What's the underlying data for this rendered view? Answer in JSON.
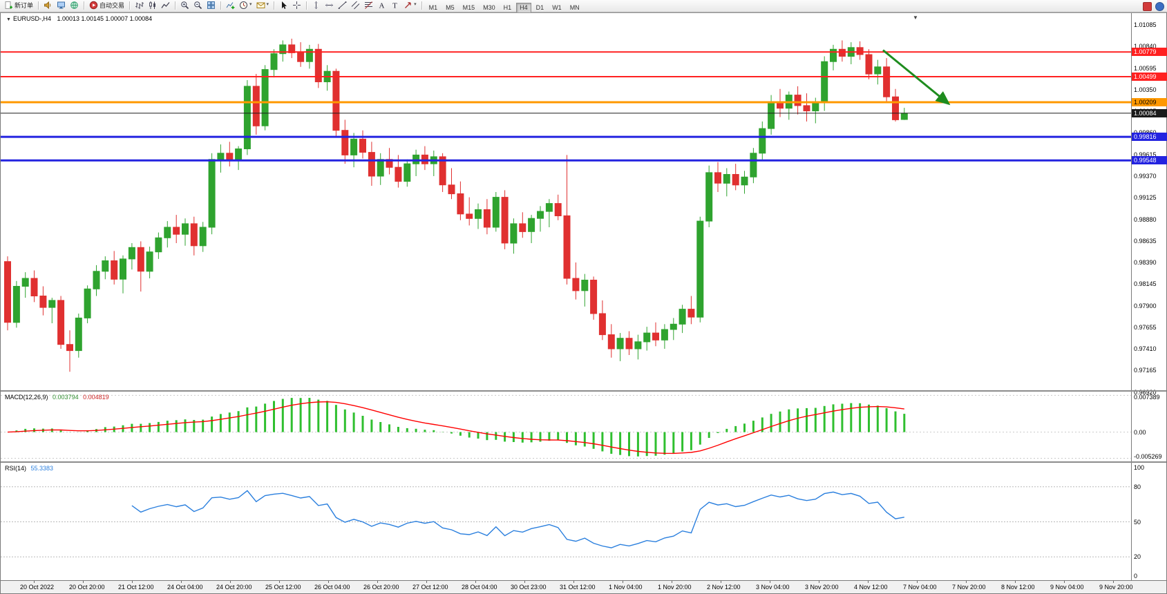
{
  "toolbar": {
    "groups": [
      {
        "items": [
          {
            "name": "new-order-button",
            "glyph": "doc-plus",
            "label": "新订单"
          }
        ]
      },
      {
        "items": [
          {
            "name": "alerts-button",
            "glyph": "speaker"
          },
          {
            "name": "market-watch-button",
            "glyph": "monitor"
          },
          {
            "name": "community-button",
            "glyph": "globe"
          }
        ]
      },
      {
        "items": [
          {
            "name": "autotrading-button",
            "glyph": "play-red",
            "label": "自动交易"
          }
        ]
      },
      {
        "items": [
          {
            "name": "bar-chart-button",
            "glyph": "chart-bars"
          },
          {
            "name": "candlestick-chart-button",
            "glyph": "chart-candles"
          },
          {
            "name": "line-chart-button",
            "glyph": "chart-line"
          }
        ]
      },
      {
        "items": [
          {
            "name": "zoom-in-button",
            "glyph": "zoom-in"
          },
          {
            "name": "zoom-out-button",
            "glyph": "zoom-out"
          },
          {
            "name": "tile-windows-button",
            "glyph": "tile"
          }
        ]
      },
      {
        "items": [
          {
            "name": "indicators-button",
            "glyph": "ind-plus"
          },
          {
            "name": "periods-button",
            "glyph": "clock",
            "caret": true
          },
          {
            "name": "templates-button",
            "glyph": "mail",
            "caret": true
          }
        ]
      },
      {
        "items": [
          {
            "name": "cursor-button",
            "glyph": "cursor"
          },
          {
            "name": "crosshair-button",
            "glyph": "crosshair"
          }
        ]
      },
      {
        "items": [
          {
            "name": "vertical-line-button",
            "glyph": "vline"
          },
          {
            "name": "horizontal-line-button",
            "glyph": "hline"
          },
          {
            "name": "trendline-button",
            "glyph": "trend"
          },
          {
            "name": "channel-button",
            "glyph": "channel"
          },
          {
            "name": "fibonacci-button",
            "glyph": "fibo"
          },
          {
            "name": "text-button",
            "glyph": "text-a"
          },
          {
            "name": "text-label-button",
            "glyph": "label-t"
          },
          {
            "name": "arrows-button",
            "glyph": "arrow-ne",
            "caret": true
          }
        ]
      }
    ],
    "timeframes": [
      "M1",
      "M5",
      "M15",
      "M30",
      "H1",
      "H4",
      "D1",
      "W1",
      "MN"
    ],
    "active_timeframe": "H4",
    "right_icons": [
      {
        "name": "mql-alert-icon",
        "color": "#d23b3b",
        "round": false
      },
      {
        "name": "community-status-icon",
        "color": "#3b6ec2",
        "round": true
      }
    ]
  },
  "chart": {
    "symbol_label": "EURUSD-,H4",
    "ohlc_label": "1.00013 1.00145 1.00007 1.00084",
    "colors": {
      "up": "#2fa32f",
      "down": "#e03030",
      "bg": "#ffffff"
    },
    "price_range": {
      "top": 1.0122,
      "bottom": 0.9694
    },
    "hlines": [
      {
        "price": 1.00779,
        "label": "1.00779",
        "color": "#ff2020",
        "width": 2
      },
      {
        "price": 1.00499,
        "label": "1.00499",
        "color": "#ff2020",
        "width": 2
      },
      {
        "price": 1.00209,
        "label": "1.00209",
        "color": "#ff9800",
        "width": 3,
        "text_color": "#000"
      },
      {
        "price": 1.00084,
        "label": "1.00084",
        "color": "#1a1a1a",
        "width": 1
      },
      {
        "price": 0.99816,
        "label": "0.99816",
        "color": "#2323e0",
        "width": 3
      },
      {
        "price": 0.99548,
        "label": "0.99548",
        "color": "#2323e0",
        "width": 3
      }
    ],
    "arrow": {
      "from_bar": 98.6,
      "from_price": 1.008,
      "to_bar": 106,
      "to_price": 1.0019,
      "color": "#1e8c1e"
    },
    "price_scale_labels": [
      "1.01085",
      "1.00840",
      "1.00595",
      "1.00350",
      "1.00105",
      "0.99860",
      "0.99615",
      "0.99370",
      "0.99125",
      "0.98880",
      "0.98635",
      "0.98390",
      "0.98145",
      "0.97900",
      "0.97655",
      "0.97410",
      "0.97165",
      "0.96920"
    ]
  },
  "chart_data": {
    "type": "candlestick",
    "symbol": "EURUSD-",
    "timeframe": "H4",
    "current_ohlc": {
      "open": "1.00013",
      "high": "1.00145",
      "low": "1.00007",
      "close": "1.00084"
    },
    "candles": [
      [
        0.984,
        0.9846,
        0.9762,
        0.9771
      ],
      [
        0.9771,
        0.9818,
        0.9765,
        0.9812
      ],
      [
        0.9812,
        0.9828,
        0.9799,
        0.9821
      ],
      [
        0.9821,
        0.983,
        0.9794,
        0.9801
      ],
      [
        0.9801,
        0.9812,
        0.9779,
        0.9788
      ],
      [
        0.9788,
        0.9799,
        0.977,
        0.9796
      ],
      [
        0.9796,
        0.9801,
        0.9741,
        0.9746
      ],
      [
        0.9746,
        0.9762,
        0.9715,
        0.9739
      ],
      [
        0.9739,
        0.9781,
        0.9731,
        0.9776
      ],
      [
        0.9776,
        0.9813,
        0.977,
        0.9809
      ],
      [
        0.9809,
        0.9836,
        0.9801,
        0.9829
      ],
      [
        0.9829,
        0.9846,
        0.982,
        0.9841
      ],
      [
        0.9841,
        0.9852,
        0.9814,
        0.982
      ],
      [
        0.982,
        0.9847,
        0.9804,
        0.9843
      ],
      [
        0.9843,
        0.9861,
        0.9831,
        0.9856
      ],
      [
        0.9856,
        0.9863,
        0.9806,
        0.9829
      ],
      [
        0.9829,
        0.9857,
        0.9821,
        0.9851
      ],
      [
        0.9851,
        0.9873,
        0.9843,
        0.9867
      ],
      [
        0.9867,
        0.9886,
        0.9856,
        0.9879
      ],
      [
        0.9879,
        0.9893,
        0.9861,
        0.9871
      ],
      [
        0.9871,
        0.9889,
        0.9858,
        0.9883
      ],
      [
        0.9883,
        0.9891,
        0.9847,
        0.9858
      ],
      [
        0.9858,
        0.9885,
        0.9851,
        0.9879
      ],
      [
        0.9879,
        0.9963,
        0.9871,
        0.9956
      ],
      [
        0.9956,
        0.9973,
        0.9941,
        0.9963
      ],
      [
        0.9963,
        0.9976,
        0.9948,
        0.9955
      ],
      [
        0.9955,
        0.9971,
        0.9944,
        0.9968
      ],
      [
        0.9968,
        1.0046,
        0.9961,
        1.0039
      ],
      [
        1.0039,
        1.0053,
        0.9984,
        0.9994
      ],
      [
        0.9994,
        1.0063,
        0.9989,
        1.0058
      ],
      [
        1.0058,
        1.0081,
        1.0049,
        1.0076
      ],
      [
        1.0076,
        1.0091,
        1.0067,
        1.0086
      ],
      [
        1.0086,
        1.0093,
        1.0071,
        1.0077
      ],
      [
        1.0077,
        1.0089,
        1.0061,
        1.0067
      ],
      [
        1.0067,
        1.0086,
        1.0059,
        1.0081
      ],
      [
        1.0081,
        1.0087,
        1.0037,
        1.0044
      ],
      [
        1.0044,
        1.0063,
        1.0034,
        1.0056
      ],
      [
        1.0056,
        1.0059,
        0.9981,
        0.9989
      ],
      [
        0.9989,
        1.0001,
        0.9951,
        0.9961
      ],
      [
        0.9961,
        0.9986,
        0.9947,
        0.9979
      ],
      [
        0.9979,
        0.9989,
        0.9957,
        0.9964
      ],
      [
        0.9964,
        0.9976,
        0.9926,
        0.9937
      ],
      [
        0.9937,
        0.9963,
        0.9927,
        0.9956
      ],
      [
        0.9956,
        0.9969,
        0.9939,
        0.9947
      ],
      [
        0.9947,
        0.9961,
        0.9924,
        0.9931
      ],
      [
        0.9931,
        0.9956,
        0.9925,
        0.9951
      ],
      [
        0.9951,
        0.9967,
        0.9937,
        0.9961
      ],
      [
        0.9961,
        0.9971,
        0.9944,
        0.9951
      ],
      [
        0.9951,
        0.9966,
        0.9937,
        0.9959
      ],
      [
        0.9959,
        0.9963,
        0.9919,
        0.9927
      ],
      [
        0.9927,
        0.9946,
        0.9911,
        0.9917
      ],
      [
        0.9917,
        0.9931,
        0.9887,
        0.9894
      ],
      [
        0.9894,
        0.9913,
        0.9881,
        0.9889
      ],
      [
        0.9889,
        0.9906,
        0.9877,
        0.9899
      ],
      [
        0.9899,
        0.9911,
        0.9871,
        0.9879
      ],
      [
        0.9879,
        0.9919,
        0.9874,
        0.9913
      ],
      [
        0.9913,
        0.9921,
        0.9854,
        0.9861
      ],
      [
        0.9861,
        0.9889,
        0.9849,
        0.9883
      ],
      [
        0.9883,
        0.9896,
        0.9867,
        0.9874
      ],
      [
        0.9874,
        0.9893,
        0.9861,
        0.9889
      ],
      [
        0.9889,
        0.9903,
        0.9874,
        0.9897
      ],
      [
        0.9897,
        0.9911,
        0.9879,
        0.9906
      ],
      [
        0.9906,
        0.9916,
        0.9887,
        0.9892
      ],
      [
        0.9892,
        0.9961,
        0.9814,
        0.9821
      ],
      [
        0.9821,
        0.9839,
        0.9797,
        0.9807
      ],
      [
        0.9807,
        0.9826,
        0.9789,
        0.9819
      ],
      [
        0.9819,
        0.9823,
        0.9774,
        0.9781
      ],
      [
        0.9781,
        0.9796,
        0.9751,
        0.9757
      ],
      [
        0.9757,
        0.9769,
        0.9731,
        0.9741
      ],
      [
        0.9741,
        0.9759,
        0.9727,
        0.9753
      ],
      [
        0.9753,
        0.9761,
        0.9734,
        0.9741
      ],
      [
        0.9741,
        0.9757,
        0.9729,
        0.9749
      ],
      [
        0.9749,
        0.9766,
        0.9739,
        0.9759
      ],
      [
        0.9759,
        0.9771,
        0.9744,
        0.9751
      ],
      [
        0.9751,
        0.9769,
        0.9741,
        0.9763
      ],
      [
        0.9763,
        0.9776,
        0.9751,
        0.9769
      ],
      [
        0.9769,
        0.9791,
        0.9759,
        0.9786
      ],
      [
        0.9786,
        0.9801,
        0.9769,
        0.9777
      ],
      [
        0.9777,
        0.9891,
        0.9771,
        0.9886
      ],
      [
        0.9886,
        0.9949,
        0.9879,
        0.9941
      ],
      [
        0.9941,
        0.9953,
        0.9919,
        0.9929
      ],
      [
        0.9929,
        0.9946,
        0.9914,
        0.9939
      ],
      [
        0.9939,
        0.9951,
        0.9921,
        0.9927
      ],
      [
        0.9927,
        0.9943,
        0.9917,
        0.9936
      ],
      [
        0.9936,
        0.9969,
        0.9929,
        0.9963
      ],
      [
        0.9963,
        0.9999,
        0.9956,
        0.9991
      ],
      [
        0.9991,
        1.0029,
        0.9984,
        1.0021
      ],
      [
        1.0021,
        1.0036,
        1.0004,
        1.0014
      ],
      [
        1.0014,
        1.0033,
        1.0001,
        1.0029
      ],
      [
        1.0029,
        1.0039,
        1.0007,
        1.0017
      ],
      [
        1.0017,
        1.0031,
        0.9999,
        1.0011
      ],
      [
        1.0011,
        1.0026,
        0.9997,
        1.0021
      ],
      [
        1.0021,
        1.0073,
        1.0011,
        1.0067
      ],
      [
        1.0067,
        1.0086,
        1.0057,
        1.0081
      ],
      [
        1.0081,
        1.0091,
        1.0067,
        1.0073
      ],
      [
        1.0073,
        1.0089,
        1.0064,
        1.0083
      ],
      [
        1.0083,
        1.009,
        1.0069,
        1.0075
      ],
      [
        1.0075,
        1.0081,
        1.0047,
        1.0053
      ],
      [
        1.0053,
        1.0069,
        1.0041,
        1.0061
      ],
      [
        1.0061,
        1.0071,
        1.0021,
        1.0027
      ],
      [
        1.0027,
        1.0036,
        0.9999,
        1.0001
      ],
      [
        1.00013,
        1.00145,
        1.00007,
        1.00084
      ]
    ],
    "time_labels": [
      "20 Oct 2022",
      "20 Oct 20:00",
      "21 Oct 12:00",
      "24 Oct 04:00",
      "24 Oct 20:00",
      "25 Oct 12:00",
      "26 Oct 04:00",
      "26 Oct 20:00",
      "27 Oct 12:00",
      "28 Oct 04:00",
      "30 Oct 23:00",
      "31 Oct 12:00",
      "1 Nov 04:00",
      "1 Nov 20:00",
      "2 Nov 12:00",
      "3 Nov 04:00",
      "3 Nov 20:00",
      "4 Nov 12:00",
      "7 Nov 04:00",
      "7 Nov 20:00",
      "8 Nov 12:00",
      "9 Nov 04:00",
      "9 Nov 20:00"
    ]
  },
  "macd": {
    "name_label": "MACD(12,26,9)",
    "value_main": "0.003794",
    "value_signal": "0.004819",
    "scale_top": "0.007389",
    "scale_zero": "0.00",
    "scale_bottom": "-0.005269",
    "histogram_color": "#2fbf2f",
    "signal_color": "#ff0000",
    "params": {
      "fast": 12,
      "slow": 26,
      "signal": 9
    },
    "range": {
      "max": 0.008,
      "min": -0.0059
    }
  },
  "rsi": {
    "name_label": "RSI(14)",
    "value": "55.3383",
    "period": 14,
    "line_color": "#2a7fde",
    "levels": [
      80,
      50,
      20
    ],
    "scale_values": [
      100,
      80,
      50,
      20,
      0
    ],
    "scale_labels": [
      "100",
      "80",
      "50",
      "20",
      "0"
    ]
  }
}
